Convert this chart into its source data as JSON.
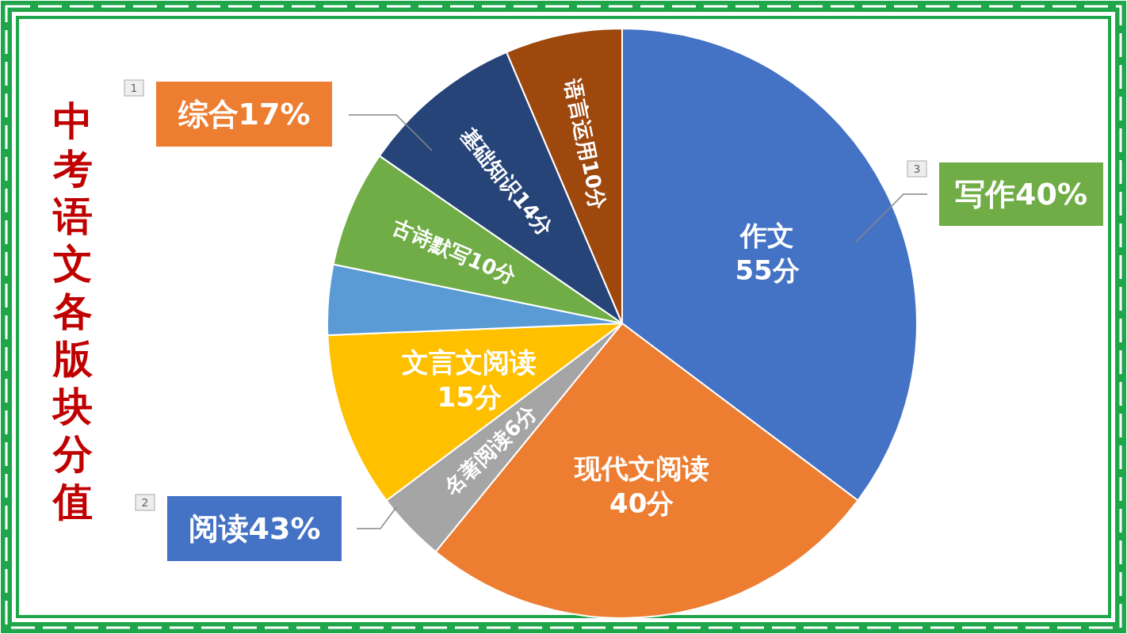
{
  "chart_data": {
    "type": "pie",
    "title": "中考语文各版块分值",
    "categories": [
      "作文",
      "现代文阅读",
      "名著阅读",
      "文言文阅读",
      null,
      "古诗默写",
      "基础知识",
      "语言运用"
    ],
    "values": [
      55,
      40,
      6,
      15,
      6,
      10,
      14,
      10
    ],
    "value_labels": [
      "55分",
      "40分",
      "6分",
      "15分",
      null,
      "10分",
      "14分",
      "10分"
    ],
    "colors": [
      "#4472c4",
      "#ed7d31",
      "#a5a5a5",
      "#ffc000",
      "#5b9bd5",
      "#70ad47",
      "#264478",
      "#9e480e"
    ],
    "annotations": [
      "1",
      "综合17%",
      "2",
      "阅读43%",
      "3",
      "写作40%"
    ]
  }
}
